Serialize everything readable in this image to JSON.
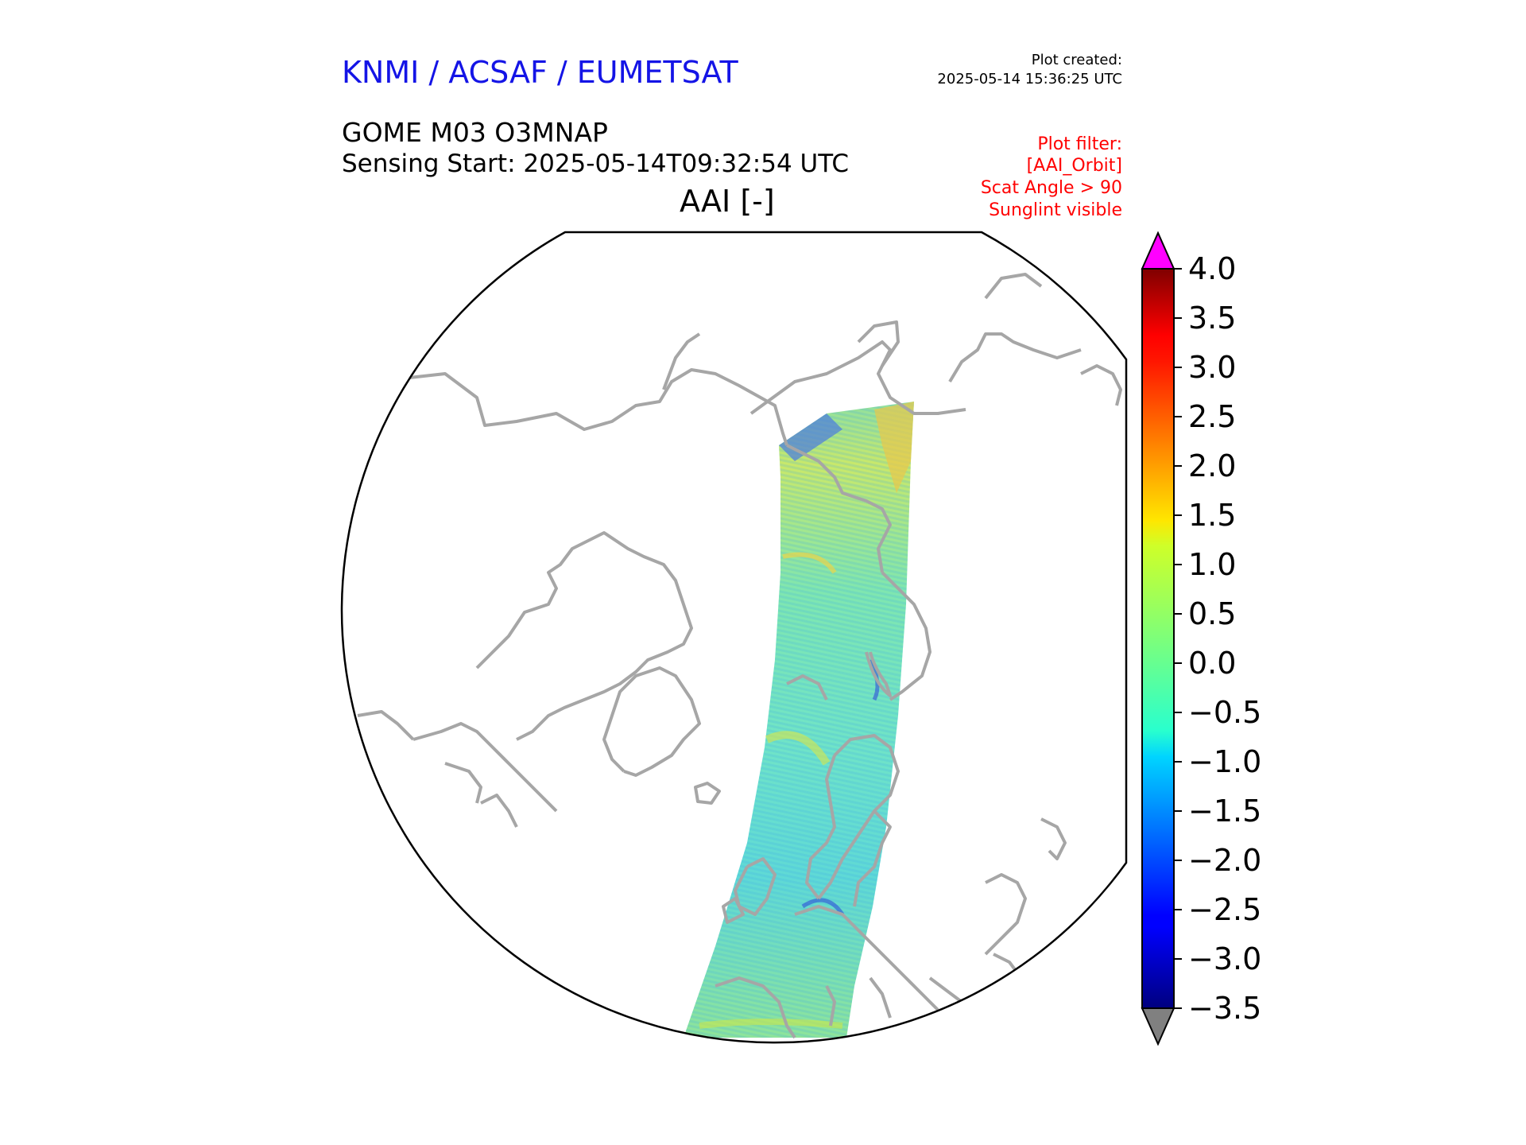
{
  "header": {
    "organisation": "KNMI / ACSAF / EUMETSAT",
    "created_label": "Plot created:",
    "created_time": "2025-05-14 15:36:25 UTC",
    "product": "GOME M03 O3MNAP",
    "sensing_start": "Sensing Start: 2025-05-14T09:32:54 UTC",
    "parameter": "AAI [-]"
  },
  "filters": [
    "Plot filter:",
    "[AAI_Orbit]",
    "Scat Angle > 90",
    "Sunglint visible"
  ],
  "colorbar": {
    "min": -3.5,
    "max": 4.0,
    "ticks": [
      "4.0",
      "3.5",
      "3.0",
      "2.5",
      "2.0",
      "1.5",
      "1.0",
      "0.5",
      "0.0",
      "−0.5",
      "−1.0",
      "−1.5",
      "−2.0",
      "−2.5",
      "−3.0",
      "−3.5"
    ],
    "colormap": "jet",
    "over_color": "#ff00ff",
    "under_color": "#808080"
  },
  "map": {
    "projection": "north-polar stereographic",
    "coastline_color": "#a6a6a6",
    "swath": "GOME AAI orbit swath from Northern Russia across Scandinavia to Western Europe"
  }
}
